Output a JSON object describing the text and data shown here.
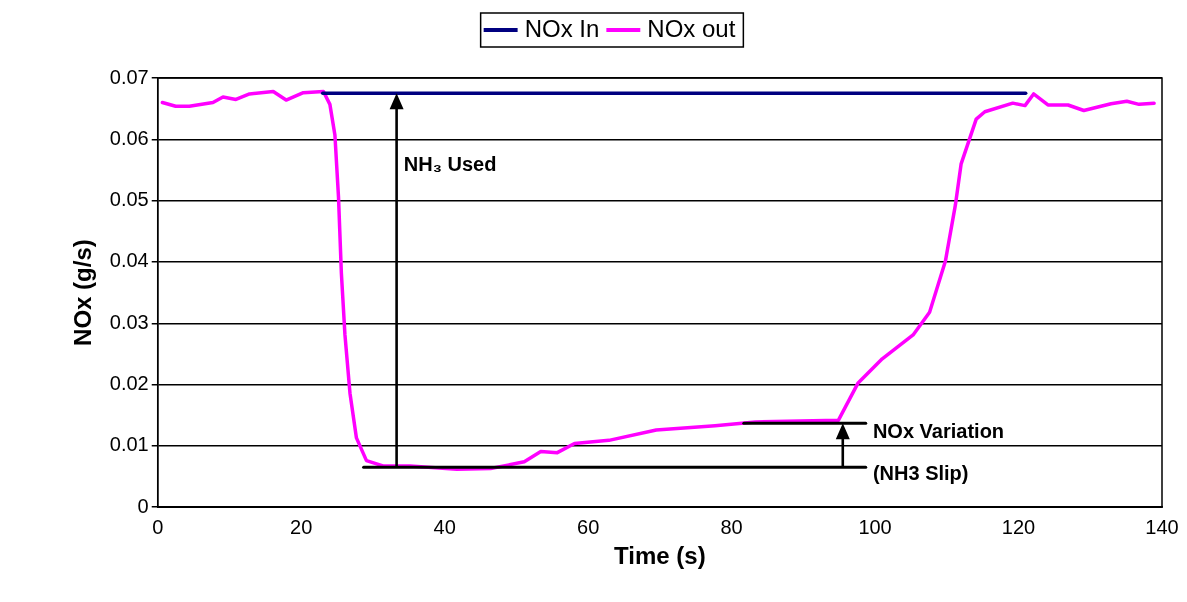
{
  "chart_data": {
    "type": "line",
    "xlabel": "Time (s)",
    "ylabel": "NOx (g/s)",
    "xlim": [
      0,
      140
    ],
    "xticks": [
      0,
      20,
      40,
      60,
      80,
      100,
      120,
      140
    ],
    "ylim": [
      0,
      0.07
    ],
    "yticks": [
      0,
      0.01,
      0.02,
      0.03,
      0.04,
      0.05,
      0.06,
      0.07
    ],
    "grid": "y",
    "legend": "top",
    "marker": "none",
    "line_style": "solid",
    "series": [
      {
        "name": "NOx In",
        "color": "#000080",
        "x": [
          23,
          121
        ],
        "values": [
          0.0675,
          0.0675
        ]
      },
      {
        "color": "#000000",
        "x": [
          28.7,
          98.7
        ],
        "values": [
          0.0065,
          0.0065
        ]
      },
      {
        "color": "#000000",
        "x": [
          81.7,
          98.7
        ],
        "values": [
          0.0137,
          0.0137
        ]
      },
      {
        "name": "NOx out",
        "color": "#ff00ff",
        "x": [
          0.65,
          2.5,
          4.4,
          7.7,
          9.1,
          10.9,
          12.8,
          16.1,
          17.9,
          20.3,
          23.1,
          24.0,
          24.7,
          25.2,
          25.6,
          26.1,
          26.8,
          27.7,
          29.1,
          31.5,
          35.2,
          41.7,
          46.4,
          51.1,
          53.4,
          55.7,
          58.1,
          62.9,
          69.5,
          77.7,
          83.3,
          94.9,
          97.6,
          101.0,
          105.3,
          107.6,
          109.8,
          111.2,
          112.0,
          114.1,
          115.3,
          119.2,
          120.9,
          122.1,
          124.1,
          126.9,
          129.1,
          132.9,
          135.1,
          136.8,
          138.9
        ],
        "values": [
          0.066,
          0.0654,
          0.0654,
          0.066,
          0.0669,
          0.0665,
          0.0674,
          0.0678,
          0.0664,
          0.0676,
          0.0678,
          0.0657,
          0.0607,
          0.0506,
          0.0382,
          0.0281,
          0.0186,
          0.0113,
          0.0076,
          0.0067,
          0.0067,
          0.0062,
          0.0063,
          0.0074,
          0.0091,
          0.0089,
          0.0104,
          0.0109,
          0.0126,
          0.0133,
          0.0139,
          0.0142,
          0.0202,
          0.0242,
          0.0281,
          0.0318,
          0.0401,
          0.0493,
          0.056,
          0.0633,
          0.0645,
          0.0659,
          0.0655,
          0.0674,
          0.0656,
          0.0656,
          0.0647,
          0.0658,
          0.0662,
          0.0657,
          0.0659
        ]
      }
    ],
    "annotations": [
      "NH₃ Used",
      "NOx Variation",
      "(NH3 Slip)"
    ]
  }
}
